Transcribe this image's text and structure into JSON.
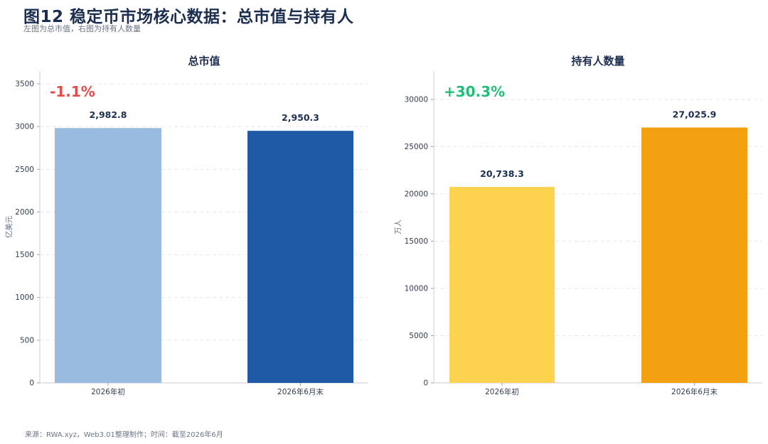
{
  "header": {
    "title": "图12 稳定币市场核心数据：总市值与持有人",
    "subtitle": "左图为总市值，右图为持有人数量"
  },
  "footer": {
    "source": "来源：RWA.xyz，Web3.01整理制作；时间：截至2026年6月"
  },
  "chart_data": [
    {
      "type": "bar",
      "title": "总市值",
      "ylabel": "亿美元",
      "categories": [
        "2026年初",
        "2026年6月末"
      ],
      "values": [
        2982.8,
        2950.3
      ],
      "value_labels": [
        "2,982.8",
        "2,950.3"
      ],
      "colors": [
        "#99bbe0",
        "#1f5aa6"
      ],
      "ylim": [
        0,
        3650
      ],
      "yticks": [
        0,
        500,
        1000,
        1500,
        2000,
        2500,
        3000,
        3500
      ],
      "change_label": "-1.1%",
      "change_color": "#e84a4a",
      "grid": true
    },
    {
      "type": "bar",
      "title": "持有人数量",
      "ylabel": "万人",
      "categories": [
        "2026年初",
        "2026年6月末"
      ],
      "values": [
        20738.3,
        27025.9
      ],
      "value_labels": [
        "20,738.3",
        "27,025.9"
      ],
      "colors": [
        "#fcd34e",
        "#f3a011"
      ],
      "ylim": [
        0,
        33000
      ],
      "yticks": [
        0,
        5000,
        10000,
        15000,
        20000,
        25000,
        30000
      ],
      "change_label": "+30.3%",
      "change_color": "#20bf78",
      "grid": true
    }
  ]
}
